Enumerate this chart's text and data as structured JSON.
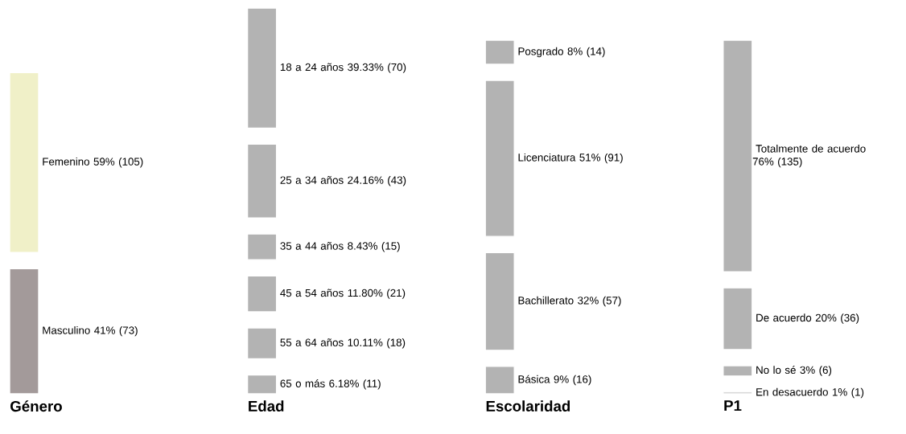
{
  "chart_data": [
    {
      "type": "other",
      "title": "Género",
      "categories": [
        "Femenino",
        "Masculino"
      ],
      "values": [
        105,
        73
      ],
      "value_labels": [
        "59% (105)",
        "41% (73)"
      ],
      "colors": [
        "#f0f0c8",
        "#a39a9a"
      ]
    },
    {
      "type": "other",
      "title": "Edad",
      "categories": [
        "18 a 24 años",
        "25 a 34 años",
        "35 a 44 años",
        "45 a 54 años",
        "55 a 64 años",
        "65 o más"
      ],
      "values": [
        70,
        43,
        15,
        21,
        18,
        11
      ],
      "value_labels": [
        "39.33% (70)",
        "24.16% (43)",
        "8.43% (15)",
        "11.80% (21)",
        "10.11% (18)",
        "6.18% (11)"
      ],
      "colors": [
        "#b3b3b3",
        "#b3b3b3",
        "#b3b3b3",
        "#b3b3b3",
        "#b3b3b3",
        "#b3b3b3"
      ]
    },
    {
      "type": "other",
      "title": "Escolaridad",
      "categories": [
        "Posgrado",
        "Licenciatura",
        "Bachillerato",
        "Básica"
      ],
      "values": [
        14,
        91,
        57,
        16
      ],
      "value_labels": [
        "8% (14)",
        "51% (91)",
        "32% (57)",
        "9% (16)"
      ],
      "colors": [
        "#b3b3b3",
        "#b3b3b3",
        "#b3b3b3",
        "#b3b3b3"
      ]
    },
    {
      "type": "other",
      "title": "P1",
      "categories": [
        "Totalmente de acuerdo",
        "De acuerdo",
        "No lo sé",
        "En desacuerdo"
      ],
      "values": [
        135,
        36,
        6,
        1
      ],
      "value_labels": [
        "76% (135)",
        "20% (36)",
        "3% (6)",
        "1% (1)"
      ],
      "colors": [
        "#b3b3b3",
        "#b3b3b3",
        "#b3b3b3",
        "#b3b3b3"
      ]
    }
  ]
}
